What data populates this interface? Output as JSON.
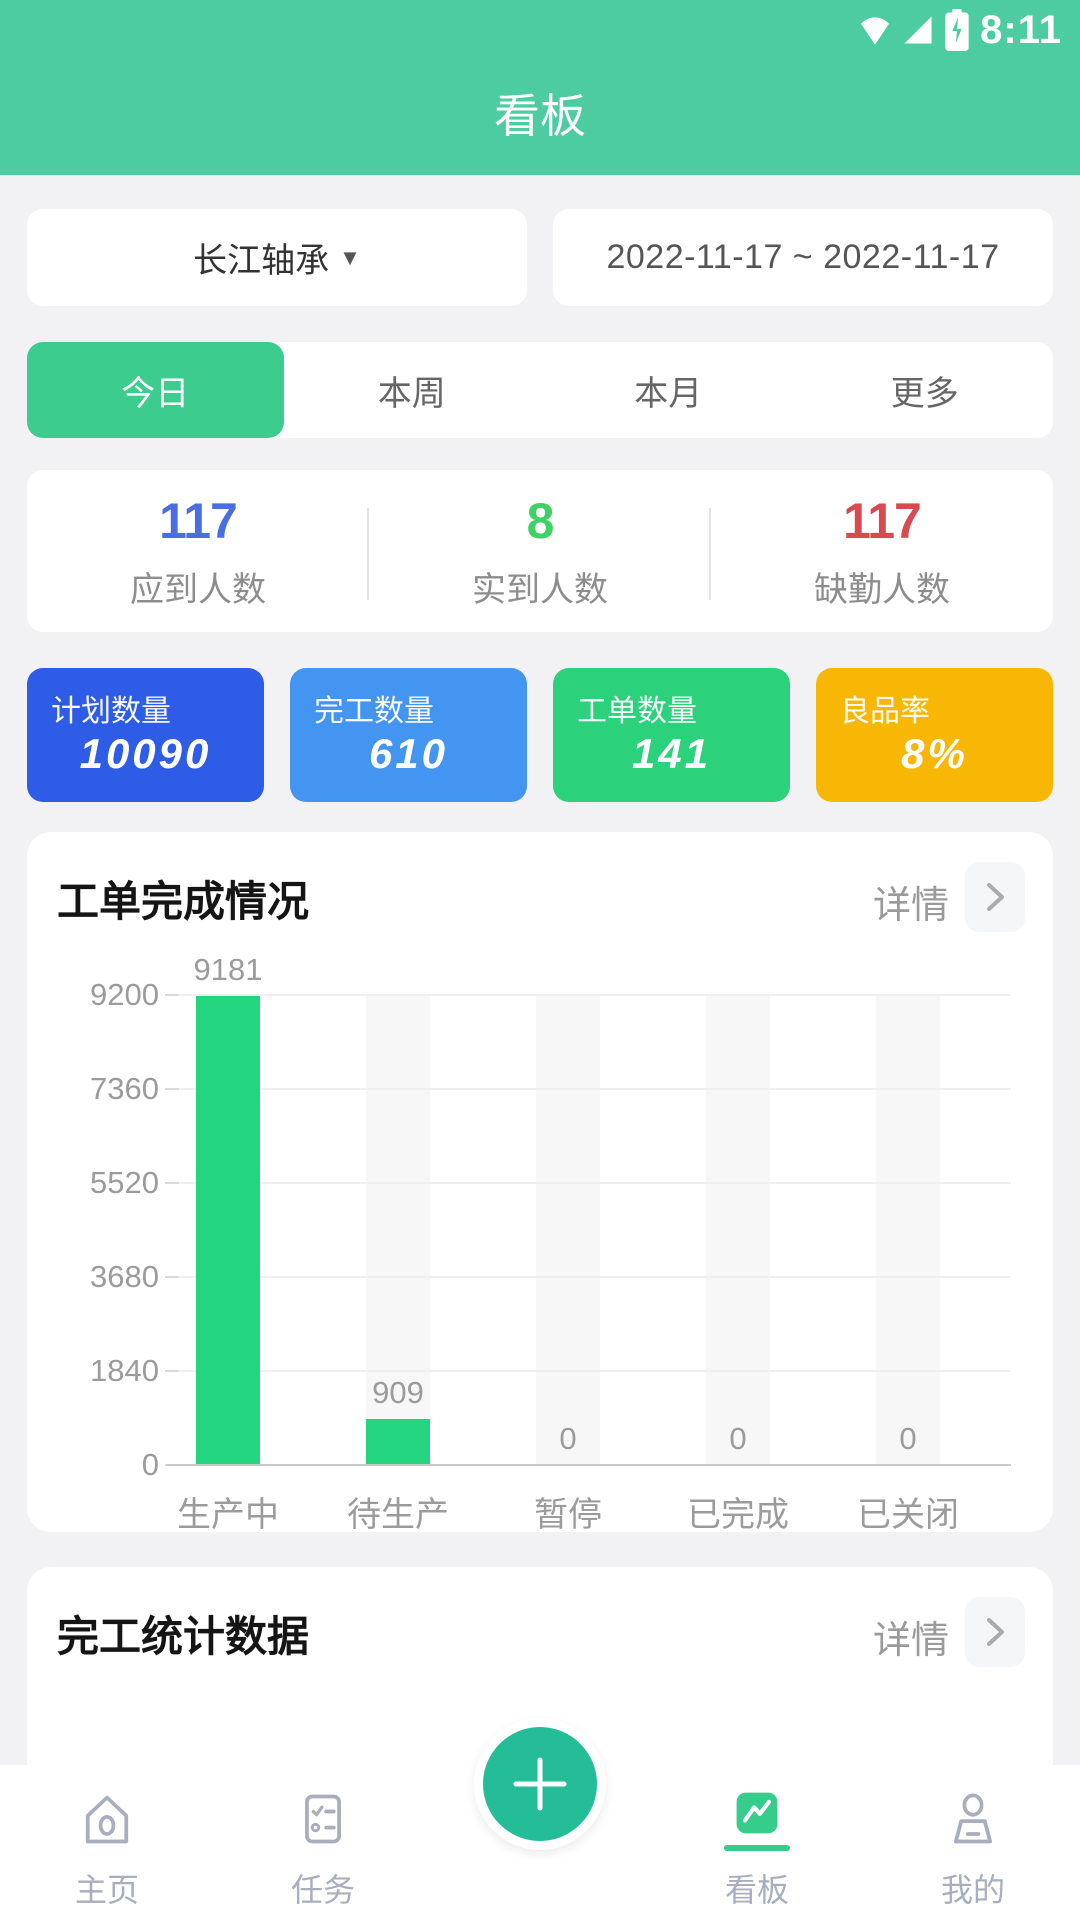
{
  "status_bar": {
    "time": "8:11",
    "icons": [
      "wifi-icon",
      "signal-icon",
      "battery-charging-icon"
    ]
  },
  "header": {
    "title": "看板",
    "bg_color": "#4DCCA2"
  },
  "filters": {
    "factory": {
      "label": "长江轴承",
      "caret": "▼"
    },
    "date_range": "2022-11-17 ~ 2022-11-17"
  },
  "tabs": [
    {
      "label": "今日",
      "active": true
    },
    {
      "label": "本周",
      "active": false
    },
    {
      "label": "本月",
      "active": false
    },
    {
      "label": "更多",
      "active": false
    }
  ],
  "attendance": [
    {
      "value": "117",
      "label": "应到人数",
      "color": "#4A6EE1"
    },
    {
      "value": "8",
      "label": "实到人数",
      "color": "#3ED164"
    },
    {
      "value": "117",
      "label": "缺勤人数",
      "color": "#D9494F"
    }
  ],
  "kpi_cards": [
    {
      "label": "计划数量",
      "value": "10090",
      "color": "#2E5CE6"
    },
    {
      "label": "完工数量",
      "value": "610",
      "color": "#4495F2"
    },
    {
      "label": "工单数量",
      "value": "141",
      "color": "#2BD17B"
    },
    {
      "label": "良品率",
      "value": "8%",
      "color": "#F8B705"
    }
  ],
  "work_order_section": {
    "title": "工单完成情况",
    "detail_label": "详情"
  },
  "chart_data": {
    "type": "bar",
    "title": "工单完成情况",
    "categories": [
      "生产中",
      "待生产",
      "暂停",
      "已完成",
      "已关闭"
    ],
    "values": [
      9181,
      909,
      0,
      0,
      0
    ],
    "y_ticks": [
      0,
      1840,
      3680,
      5520,
      7360,
      9200
    ],
    "ylim": [
      0,
      9200
    ],
    "bar_color": "#23D57E",
    "grid": true,
    "legend": "none"
  },
  "completion_section": {
    "title": "完工统计数据",
    "detail_label": "详情"
  },
  "bottom_nav": {
    "items": [
      {
        "label": "主页",
        "icon": "home-icon",
        "active": false
      },
      {
        "label": "任务",
        "icon": "tasks-icon",
        "active": false
      },
      {
        "label": "看板",
        "icon": "kanban-chart-icon",
        "active": true
      },
      {
        "label": "我的",
        "icon": "profile-icon",
        "active": false
      }
    ],
    "fab": {
      "icon": "plus-icon"
    },
    "active_color": "#35CC8C"
  }
}
